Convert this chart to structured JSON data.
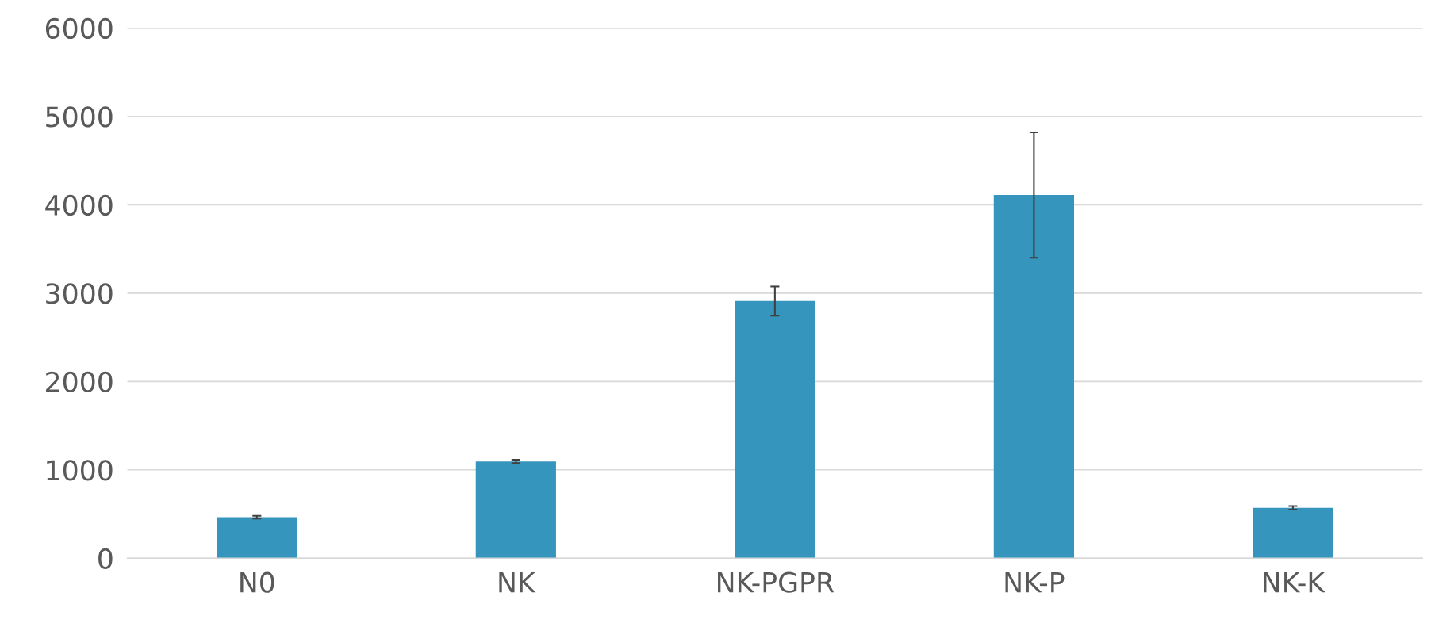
{
  "chart_data": {
    "type": "bar",
    "categories": [
      "N0",
      "NK",
      "NK-PGPR",
      "NK-P",
      "NK-K"
    ],
    "series": [
      {
        "color": "#3595bc",
        "values": [
          465,
          1095,
          2910,
          4110,
          570
        ],
        "errors": [
          15,
          20,
          165,
          710,
          20
        ]
      }
    ],
    "ylim": [
      0,
      6000
    ],
    "yticks": [
      0,
      1000,
      2000,
      3000,
      4000,
      5000,
      6000
    ],
    "grid": "y",
    "legend": false
  }
}
